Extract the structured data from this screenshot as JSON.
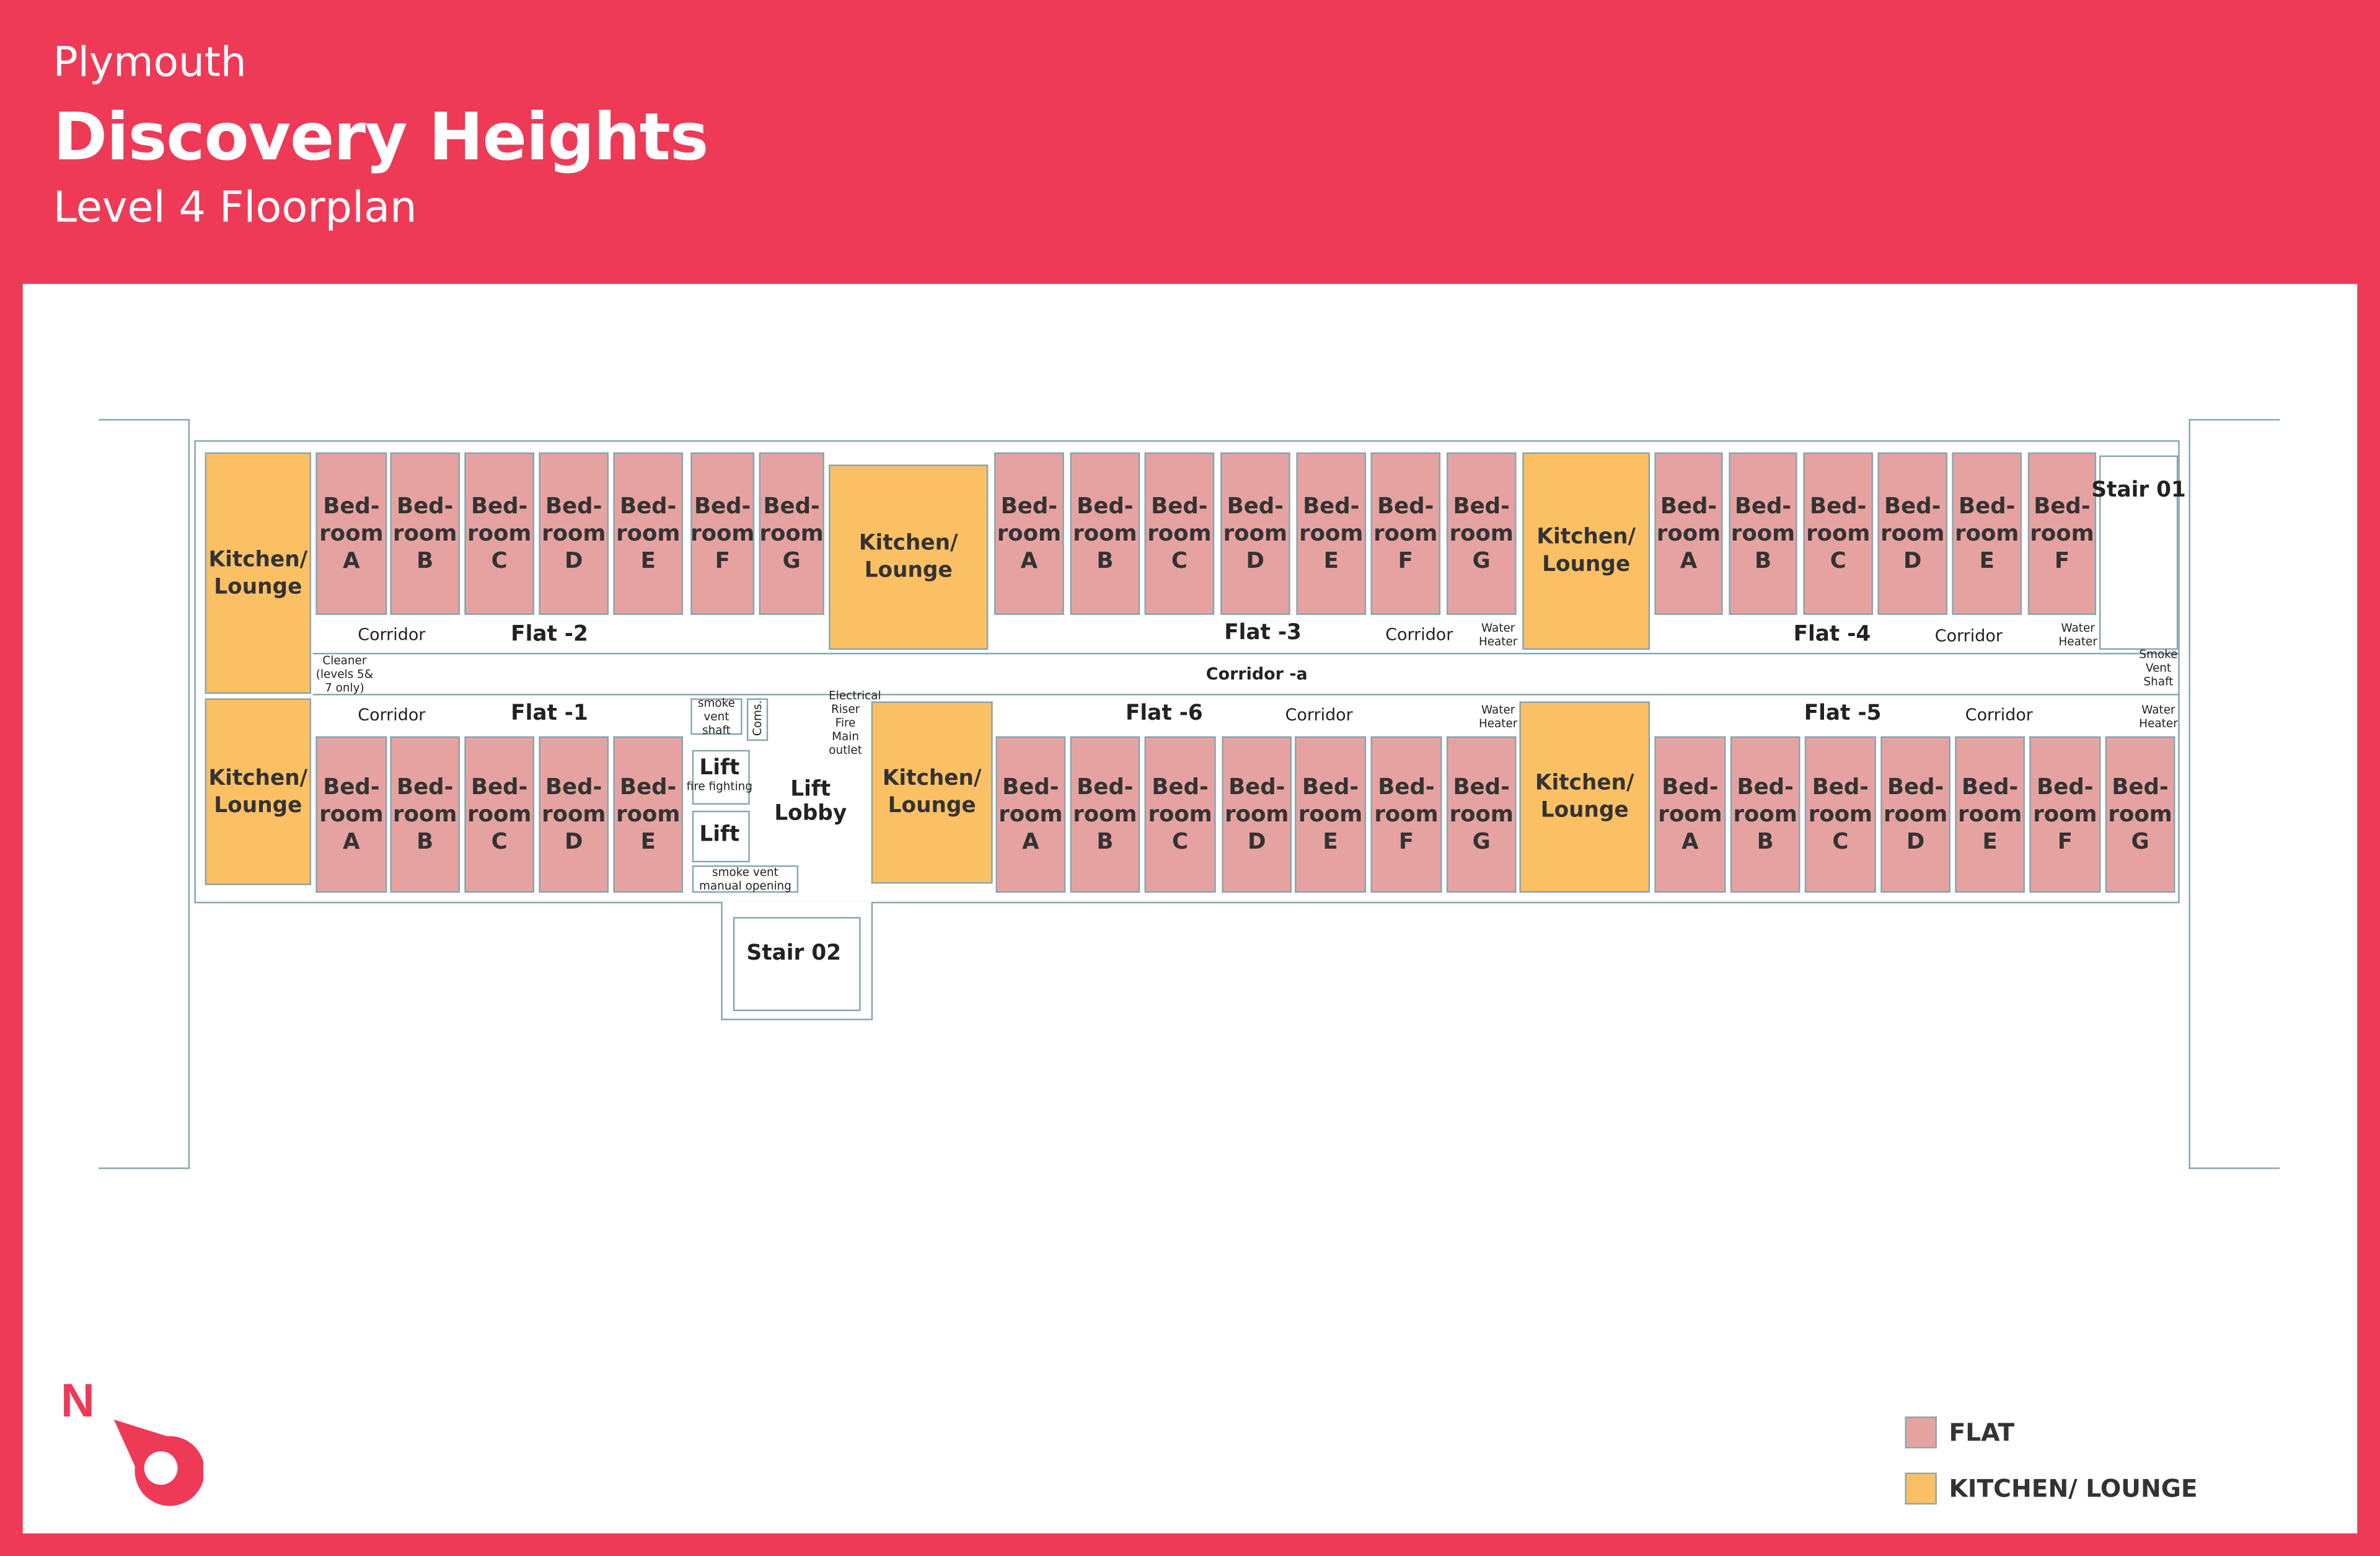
{
  "header": {
    "city": "Plymouth",
    "title": "Discovery Heights",
    "subtitle": "Level 4 Floorplan"
  },
  "colors": {
    "brand": "#EE3A57",
    "flat": "#E6A2A1",
    "kitchen_lounge": "#FCC064",
    "walls": "#86A6B0"
  },
  "room_text": {
    "bed_line1": "Bed-",
    "bed_line2": "room",
    "kitchen_line1": "Kitchen/",
    "kitchen_line2": "Lounge"
  },
  "flats": [
    {
      "name": "Flat -2",
      "bedrooms": [
        "A",
        "B",
        "C",
        "D",
        "E",
        "F",
        "G"
      ]
    },
    {
      "name": "Flat -3",
      "bedrooms": [
        "A",
        "B",
        "C",
        "D",
        "E",
        "F",
        "G"
      ]
    },
    {
      "name": "Flat -4",
      "bedrooms": [
        "A",
        "B",
        "C",
        "D",
        "E",
        "F"
      ]
    },
    {
      "name": "Flat -1",
      "bedrooms": [
        "A",
        "B",
        "C",
        "D",
        "E"
      ]
    },
    {
      "name": "Flat -6",
      "bedrooms": [
        "A",
        "B",
        "C",
        "D",
        "E",
        "F",
        "G"
      ]
    },
    {
      "name": "Flat -5",
      "bedrooms": [
        "A",
        "B",
        "C",
        "D",
        "E",
        "F",
        "G"
      ]
    }
  ],
  "labels": {
    "corridor": "Corridor",
    "corridor_a": "Corridor -a",
    "water_heater": "Water Heater",
    "cleaner": "Cleaner (levels 5& 7 only)",
    "smoke_vent_shaft_lc": "smoke vent shaft",
    "coms": "Coms.",
    "electrical": "Electrical Riser Fire Main outlet",
    "smoke_vent_shaft": "Smoke Vent Shaft",
    "lift_ff": "Lift",
    "fire_fighting": "fire fighting",
    "lift": "Lift",
    "lift_lobby": "Lift Lobby",
    "smoke_vent_manual": "smoke vent manual opening",
    "stair_01": "Stair 01",
    "stair_02": "Stair 02",
    "north": "N"
  },
  "legend": [
    {
      "label": "FLAT",
      "color": "#E6A2A1"
    },
    {
      "label": "KITCHEN/ LOUNGE",
      "color": "#FCC064"
    }
  ]
}
